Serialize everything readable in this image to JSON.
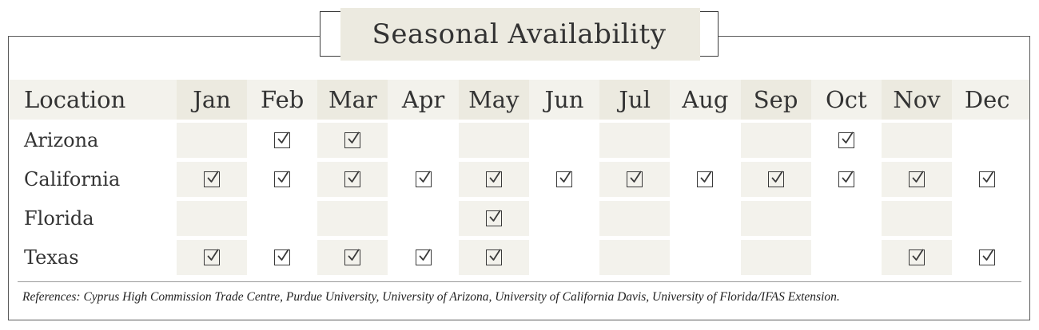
{
  "title": "Seasonal Availability",
  "header": {
    "location_label": "Location",
    "months": [
      "Jan",
      "Feb",
      "Mar",
      "Apr",
      "May",
      "Jun",
      "Jul",
      "Aug",
      "Sep",
      "Oct",
      "Nov",
      "Dec"
    ]
  },
  "rows": [
    {
      "location": "Arizona",
      "available": [
        false,
        true,
        true,
        false,
        false,
        false,
        false,
        false,
        false,
        true,
        false,
        false
      ]
    },
    {
      "location": "California",
      "available": [
        true,
        true,
        true,
        true,
        true,
        true,
        true,
        true,
        true,
        true,
        true,
        true
      ]
    },
    {
      "location": "Florida",
      "available": [
        false,
        false,
        false,
        false,
        true,
        false,
        false,
        false,
        false,
        false,
        false,
        false
      ]
    },
    {
      "location": "Texas",
      "available": [
        true,
        true,
        true,
        true,
        true,
        false,
        false,
        false,
        false,
        false,
        true,
        true
      ]
    }
  ],
  "references": "References: Cyprus High Commission Trade Centre, Purdue University, University of Arizona, University of California Davis, University of Florida/IFAS Extension.",
  "colors": {
    "shade_dark": "#eceae0",
    "shade_light": "#f3f2ec",
    "text": "#333333",
    "border": "#5a5a5a"
  },
  "icons": {
    "check": "checked-box-icon"
  }
}
